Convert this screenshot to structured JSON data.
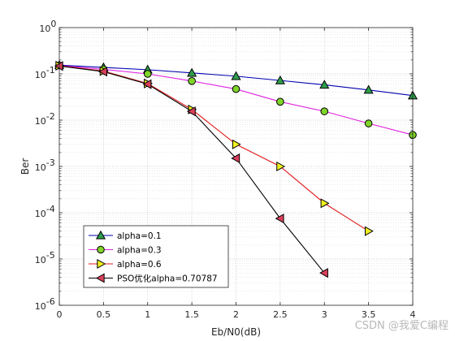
{
  "chart_data": {
    "type": "line",
    "xlabel": "Eb/N0(dB)",
    "ylabel": "Ber",
    "xlim": [
      0,
      4
    ],
    "ylim": [
      1e-06,
      1
    ],
    "yscale": "log",
    "grid": true,
    "minor_grid": true,
    "legend_position": "bottom-left",
    "x_ticks": [
      "0",
      "0.5",
      "1",
      "1.5",
      "2",
      "2.5",
      "3",
      "3.5",
      "4"
    ],
    "y_tick_mantissa": "10",
    "y_tick_exponents": [
      "-6",
      "-5",
      "-4",
      "-3",
      "-2",
      "-1",
      "0"
    ],
    "series": [
      {
        "name": "alpha=0.1",
        "line_color": "#0000b0",
        "marker": "triangle-up",
        "marker_fill": "#2e9e4a",
        "x": [
          0,
          0.5,
          1,
          1.5,
          2,
          2.5,
          3,
          3.5,
          4
        ],
        "y": [
          0.155,
          0.138,
          0.123,
          0.105,
          0.089,
          0.072,
          0.058,
          0.045,
          0.034
        ]
      },
      {
        "name": "alpha=0.3",
        "line_color": "#e020e0",
        "marker": "circle",
        "marker_fill": "#7fd42a",
        "x": [
          0,
          0.5,
          1,
          1.5,
          2,
          2.5,
          3,
          3.5,
          4
        ],
        "y": [
          0.152,
          0.125,
          0.1,
          0.07,
          0.047,
          0.025,
          0.0155,
          0.0085,
          0.0048
        ]
      },
      {
        "name": "alpha=0.6",
        "line_color": "#e01818",
        "marker": "triangle-right",
        "marker_fill": "#f0f020",
        "x": [
          0,
          0.5,
          1,
          1.5,
          2,
          2.5,
          3,
          3.5
        ],
        "y": [
          0.15,
          0.115,
          0.062,
          0.017,
          0.003,
          0.001,
          0.00016,
          4e-05
        ]
      },
      {
        "name": "PSO优化alpha=0.70787",
        "line_color": "#000000",
        "marker": "triangle-left",
        "marker_fill": "#d8405a",
        "x": [
          0,
          0.5,
          1,
          1.5,
          2,
          2.5,
          3
        ],
        "y": [
          0.148,
          0.112,
          0.06,
          0.0155,
          0.0015,
          7.5e-05,
          5e-06
        ]
      }
    ]
  },
  "watermark": {
    "text": "CSDN @我爱C编程"
  }
}
